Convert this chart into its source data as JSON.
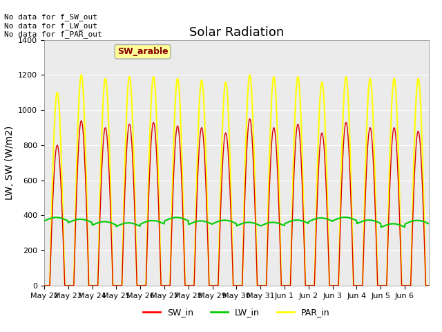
{
  "title": "Solar Radiation",
  "ylabel": "LW, SW (W/m2)",
  "ylim": [
    0,
    1400
  ],
  "yticks": [
    0,
    200,
    400,
    600,
    800,
    1000,
    1200,
    1400
  ],
  "date_labels": [
    "May 22",
    "May 23",
    "May 24",
    "May 25",
    "May 26",
    "May 27",
    "May 28",
    "May 29",
    "May 30",
    "May 31",
    "Jun 1",
    "Jun 2",
    "Jun 3",
    "Jun 4",
    "Jun 5",
    "Jun 6"
  ],
  "n_days": 16,
  "annotation_text": "No data for f_SW_out\nNo data for f_LW_out\nNo data for f_PAR_out",
  "tooltip_text": "SW_arable",
  "legend_entries": [
    "SW_in",
    "LW_in",
    "PAR_in"
  ],
  "legend_colors": [
    "#ff0000",
    "#00cc00",
    "#ffff00"
  ],
  "plot_bg_color": "#ebebeb",
  "title_fontsize": 13,
  "axis_fontsize": 10,
  "SW_in_color": "#dd0000",
  "LW_in_color": "#00cc00",
  "PAR_in_color": "#ffff00",
  "sw_peaks": [
    800,
    940,
    900,
    920,
    930,
    910,
    900,
    870,
    950,
    900,
    920,
    870,
    930,
    900,
    900,
    880
  ],
  "par_peaks": [
    1100,
    1200,
    1180,
    1190,
    1190,
    1180,
    1170,
    1160,
    1200,
    1190,
    1190,
    1160,
    1190,
    1180,
    1180,
    1180
  ],
  "pts_per_day": 48,
  "day_start": 5.5,
  "day_end": 20.5
}
